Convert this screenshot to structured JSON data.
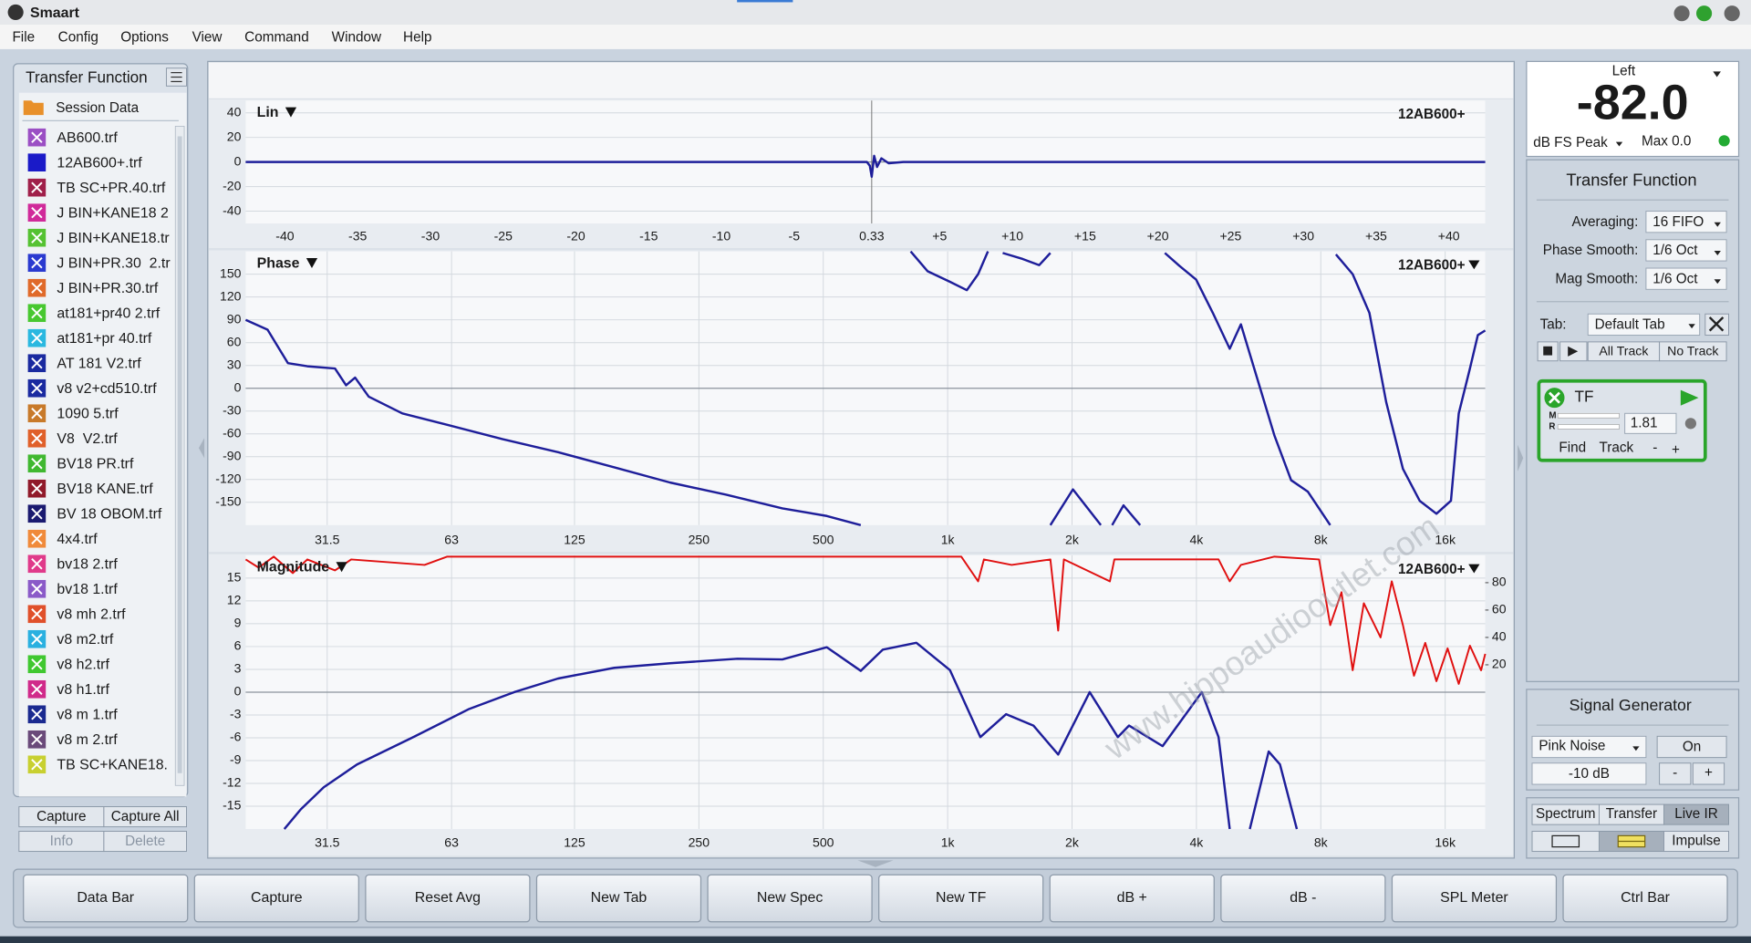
{
  "window": {
    "title": "Smaart"
  },
  "menu": [
    "File",
    "Config",
    "Options",
    "View",
    "Command",
    "Window",
    "Help"
  ],
  "sidebar": {
    "title": "Transfer Function",
    "folder": "Session Data",
    "items": [
      {
        "name": "AB600.trf",
        "color": "#9b4fc4"
      },
      {
        "name": "12AB600+.trf",
        "color": "#1a1ac8"
      },
      {
        "name": "TB SC+PR.40.trf",
        "color": "#a0204a"
      },
      {
        "name": "J BIN+KANE18 2",
        "color": "#d02a9a"
      },
      {
        "name": "J BIN+KANE18.tr",
        "color": "#55c232"
      },
      {
        "name": "J BIN+PR.30  2.tr",
        "color": "#2a3ad0"
      },
      {
        "name": "J BIN+PR.30.trf",
        "color": "#e06a2a"
      },
      {
        "name": "at181+pr40 2.trf",
        "color": "#48c830"
      },
      {
        "name": "at181+pr 40.trf",
        "color": "#2ab8e0"
      },
      {
        "name": "AT 181 V2.trf",
        "color": "#1a2aa0"
      },
      {
        "name": "v8 v2+cd510.trf",
        "color": "#1a2aa0"
      },
      {
        "name": "1090 5.trf",
        "color": "#c87a2a"
      },
      {
        "name": "V8  V2.trf",
        "color": "#e0602a"
      },
      {
        "name": "BV18 PR.trf",
        "color": "#40b830"
      },
      {
        "name": "BV18 KANE.trf",
        "color": "#901a2a"
      },
      {
        "name": "BV 18 OBOM.trf",
        "color": "#1a1a70"
      },
      {
        "name": "4x4.trf",
        "color": "#f08a3a"
      },
      {
        "name": "bv18 2.trf",
        "color": "#e03a8a"
      },
      {
        "name": "bv18 1.trf",
        "color": "#8a5ac8"
      },
      {
        "name": "v8 mh 2.trf",
        "color": "#e0502a"
      },
      {
        "name": "v8 m2.trf",
        "color": "#2ab0e0"
      },
      {
        "name": "v8 h2.trf",
        "color": "#40c830"
      },
      {
        "name": "v8 h1.trf",
        "color": "#d02a8a"
      },
      {
        "name": "v8 m 1.trf",
        "color": "#1a2a90"
      },
      {
        "name": "v8 m 2.trf",
        "color": "#6a4a7a"
      },
      {
        "name": "TB SC+KANE18.",
        "color": "#c8d030"
      }
    ],
    "buttons": [
      "Capture",
      "Capture All",
      "Info",
      "Delete"
    ]
  },
  "chart_data": [
    {
      "type": "line",
      "label": "Lin",
      "xlim": [
        -42.7,
        42.5
      ],
      "ylim": [
        -50,
        50
      ],
      "grid": "y",
      "yticks": [
        40,
        20,
        0,
        -20,
        -40
      ],
      "xticks": [
        -40,
        -35,
        -30,
        -25,
        -20,
        -15,
        -10,
        -5,
        0.33,
        {
          "value": 5,
          "label": "+5"
        },
        {
          "value": 10,
          "label": "+10"
        },
        {
          "value": 15,
          "label": "+15"
        },
        {
          "value": 20,
          "label": "+20"
        },
        {
          "value": 25,
          "label": "+25"
        },
        {
          "value": 30,
          "label": "+30"
        },
        {
          "value": 35,
          "label": "+35"
        },
        {
          "value": 40,
          "label": "+40"
        }
      ],
      "series": [
        {
          "name": "12AB600+",
          "color": "#1e1e9a",
          "x": [
            -42.7,
            -20,
            0,
            0.2,
            0.33,
            0.5,
            0.7,
            1.0,
            1.5,
            2.5,
            20,
            42.5
          ],
          "values": [
            0,
            0,
            0,
            -3,
            -12,
            5,
            -4,
            3,
            -1,
            0,
            0,
            0
          ]
        }
      ]
    },
    {
      "type": "line",
      "label": "Phase",
      "xscale": "log",
      "xlim": [
        20,
        20000
      ],
      "ylim": [
        -180,
        180
      ],
      "grid": "both",
      "yticks": [
        150,
        120,
        90,
        60,
        30,
        0,
        -30,
        -60,
        -90,
        -120,
        -150
      ],
      "xticks": [
        31.5,
        63,
        125,
        250,
        500,
        {
          "value": 1000,
          "label": "1k"
        },
        {
          "value": 2000,
          "label": "2k"
        },
        {
          "value": 4000,
          "label": "4k"
        },
        {
          "value": 8000,
          "label": "8k"
        },
        {
          "value": 16000,
          "label": "16k"
        }
      ],
      "series": [
        {
          "name": "12AB600+",
          "color": "#1e1e9a",
          "x": [
            20.0,
            22.6,
            25.3,
            28.2,
            32.9,
            35.0,
            36.8,
            39.7,
            47.9,
            61.5,
            83.8,
            114,
            156,
            213,
            291,
            398,
            510,
            616,
            null,
            814,
            894,
            1013,
            1113,
            1185,
            1252,
            null,
            1359,
            1519,
            1666,
            1773,
            null,
            1773,
            2010,
            2349,
            null,
            2500,
            2664,
            2923,
            null,
            3354,
            3637,
            3994,
            4385,
            4815,
            5126,
            5627,
            6178,
            6782,
            7446,
            8433,
            null,
            8703,
            9554,
            10490,
            11517,
            12643,
            13880,
            15240,
            16520,
            17260,
            18370,
            19190,
            20000
          ],
          "values": [
            90,
            77,
            33,
            29,
            26,
            4,
            14,
            -11,
            -33,
            -48,
            -67,
            -84,
            -104,
            -124,
            -140,
            -158,
            -168,
            -180,
            null,
            180,
            154,
            140,
            129,
            150,
            180,
            null,
            178,
            170,
            162,
            178,
            null,
            -180,
            -133,
            -180,
            null,
            -180,
            -154,
            -180,
            null,
            178,
            161,
            143,
            99,
            52,
            84,
            11,
            -62,
            -121,
            -136,
            -180,
            null,
            176,
            150,
            99,
            -18,
            -106,
            -148,
            -165,
            -148,
            -33,
            26,
            70,
            76
          ]
        }
      ]
    },
    {
      "type": "line",
      "label": "Magnitude",
      "xscale": "log",
      "xlim": [
        20,
        20000
      ],
      "ylim": [
        -18,
        18
      ],
      "grid": "both",
      "yticks": [
        15,
        12,
        9,
        6,
        3,
        0,
        -3,
        -6,
        -9,
        -12,
        -15
      ],
      "y2lim": [
        -100,
        100
      ],
      "y2ticks": [
        80,
        60,
        40,
        20
      ],
      "xticks": [
        31.5,
        63,
        125,
        250,
        500,
        {
          "value": 1000,
          "label": "1k"
        },
        {
          "value": 2000,
          "label": "2k"
        },
        {
          "value": 4000,
          "label": "4k"
        },
        {
          "value": 8000,
          "label": "8k"
        },
        {
          "value": 16000,
          "label": "16k"
        }
      ],
      "series": [
        {
          "color": "#e01010",
          "axis": "y2",
          "x": [
            20.0,
            21.5,
            23.4,
            26.0,
            28.2,
            32.9,
            36.0,
            54.2,
            61.5,
            1079,
            1185,
            1224,
            1428,
            1773,
            1852,
            1911,
            2469,
            2532,
            4524,
            4815,
            5126,
            6178,
            7925,
            8433,
            8977,
            9554,
            10170,
            11160,
            11880,
            12643,
            13450,
            14320,
            15240,
            16220,
            17260,
            18370,
            19550,
            20000
          ],
          "values": [
            97,
            91,
            99,
            87,
            97,
            89,
            97,
            93,
            99,
            99,
            81,
            97,
            93,
            97,
            45,
            97,
            81,
            97,
            97,
            81,
            93,
            99,
            97,
            49,
            73,
            16,
            65,
            40,
            81,
            49,
            12,
            36,
            8,
            32,
            6,
            34,
            16,
            28
          ]
        },
        {
          "name": "12AB600+",
          "color": "#1e1e9a",
          "x": [
            24.8,
            27.2,
            30.9,
            37.2,
            50.9,
            69.5,
            89.3,
            114,
            156,
            213,
            310,
            398,
            510,
            616,
            697,
            840,
            1013,
            1200,
            1385,
            1613,
            1852,
            2206,
            2581,
            2747,
            3312,
            4123,
            4524,
            4815,
            null,
            5386,
            5985,
            6371,
            7001
          ],
          "values": [
            -18,
            -15.4,
            -12.5,
            -9.5,
            -5.9,
            -2.2,
            0,
            1.8,
            3.2,
            3.8,
            4.4,
            4.3,
            5.9,
            2.8,
            5.6,
            6.5,
            2.9,
            -5.9,
            -2.9,
            -4.4,
            -8.2,
            0,
            -5.9,
            -4.4,
            -7.1,
            0,
            -5.9,
            -18,
            null,
            -18,
            -7.8,
            -9.5,
            -18
          ]
        }
      ]
    }
  ],
  "watermark": "www.hippoaudiooutlet.com",
  "meter": {
    "channel": "Left",
    "value": "-82.0",
    "mode": "dB FS Peak",
    "max": "Max 0.0"
  },
  "tf_panel": {
    "title": "Transfer Function",
    "rows": [
      {
        "label": "Averaging:",
        "value": "16 FIFO"
      },
      {
        "label": "Phase Smooth:",
        "value": "1/6 Oct"
      },
      {
        "label": "Mag Smooth:",
        "value": "1/6 Oct"
      }
    ],
    "tab_label": "Tab:",
    "tab_value": "Default Tab",
    "track_buttons": [
      "All Track",
      "No Track"
    ],
    "engine": {
      "name": "TF",
      "m": "M",
      "r": "R",
      "delay": "1.81",
      "find": "Find",
      "track": "Track",
      "minus": "-",
      "plus": "+"
    }
  },
  "signal_generator": {
    "title": "Signal Generator",
    "source": "Pink Noise",
    "state": "On",
    "level": "-10 dB",
    "minus": "-",
    "plus": "+"
  },
  "view_buttons": [
    "Spectrum",
    "Transfer",
    "Live IR",
    "Impulse"
  ],
  "toolbar": [
    "Data Bar",
    "Capture",
    "Reset Avg",
    "New Tab",
    "New Spec",
    "New TF",
    "dB +",
    "dB -",
    "SPL Meter",
    "Ctrl Bar"
  ]
}
